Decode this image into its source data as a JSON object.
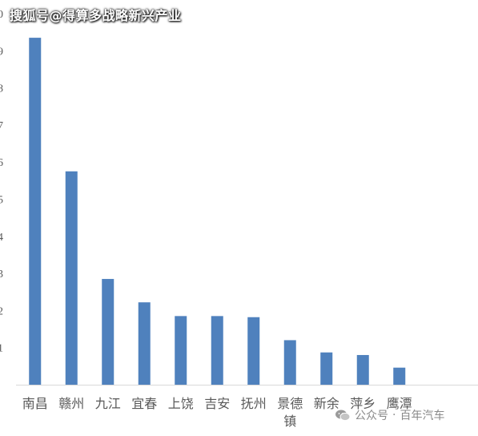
{
  "watermark_top": "搜狐号@得算多战略新兴产业",
  "watermark_bottom": {
    "icon": "wechat-icon",
    "account_label": "公众号",
    "separator": "·",
    "account_name": "百年汽车"
  },
  "colors": {
    "bar": "#4f81bd",
    "axis": "#d9d9d9",
    "tick_text": "#595959"
  },
  "chart_data": {
    "type": "bar",
    "categories": [
      "南昌",
      "赣州",
      "九江",
      "宜春",
      "上饶",
      "吉安",
      "抚州",
      "景德镇",
      "新余",
      "萍乡",
      "鹰潭"
    ],
    "values": [
      9.35,
      5.75,
      2.85,
      2.22,
      1.85,
      1.85,
      1.82,
      1.2,
      0.87,
      0.8,
      0.46
    ],
    "ylim": [
      0,
      10
    ],
    "grid": false,
    "title": "",
    "xlabel": "",
    "ylabel": ""
  }
}
